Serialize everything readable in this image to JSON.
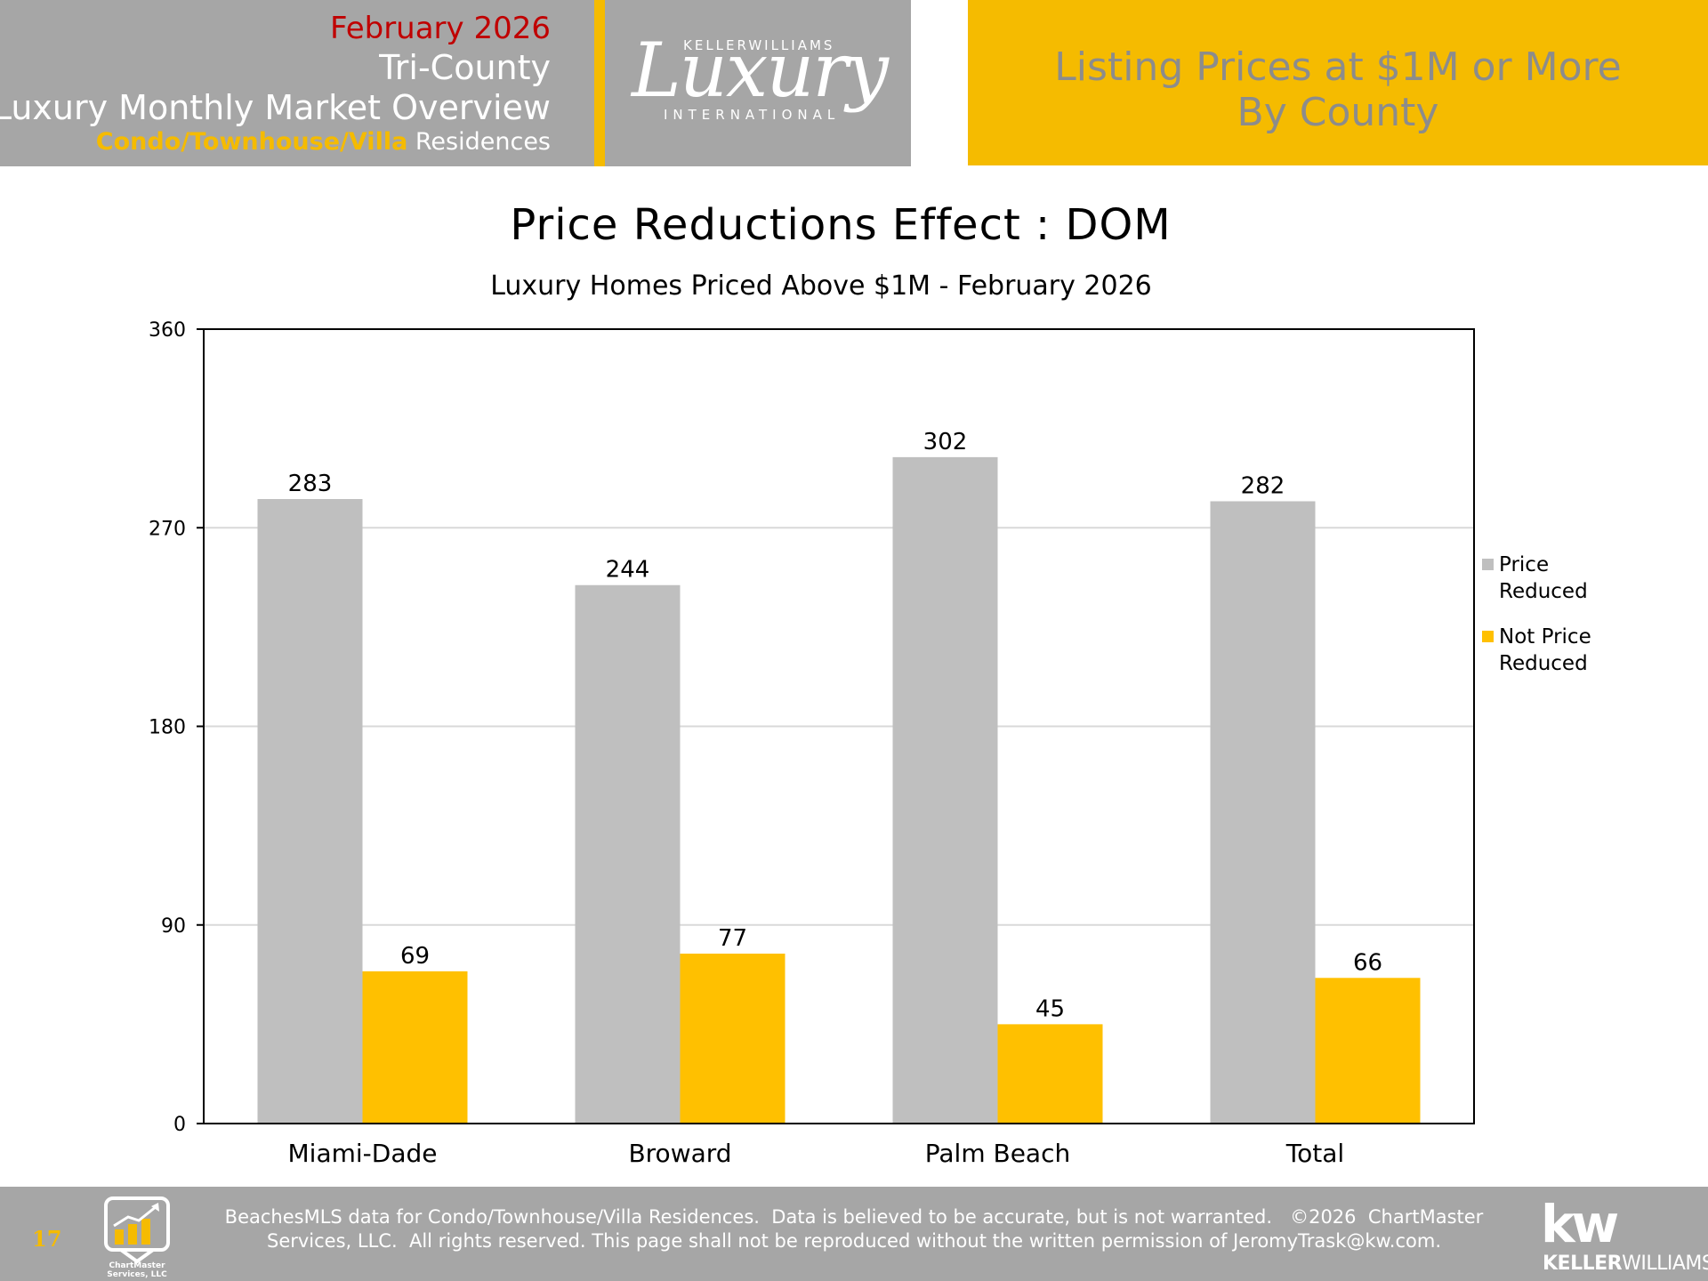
{
  "header": {
    "month": "February 2026",
    "region": "Tri-County",
    "title": "Luxury Monthly Market Overview",
    "property_highlight": "Condo/Townhouse/Villa",
    "property_rest": " Residences",
    "right_line1": "Listing Prices at $1M or More",
    "right_line2": "By County"
  },
  "logo": {
    "top": "KELLERWILLIAMS",
    "script": "Luxury",
    "bottom": "INTERNATIONAL"
  },
  "colors": {
    "accent": "#f5bb00",
    "header_gray": "#a6a6a6",
    "month_red": "#c00000",
    "bar_gray": "#bfbfbf",
    "bar_yellow": "#ffc000"
  },
  "chart_data": {
    "type": "bar",
    "title": "Price Reductions Effect : DOM",
    "subtitle": "Luxury Homes Priced Above $1M - February 2026",
    "categories": [
      "Miami-Dade",
      "Broward",
      "Palm Beach",
      "Total"
    ],
    "series": [
      {
        "name": "Price Reduced",
        "name_lines": [
          "Price",
          "Reduced"
        ],
        "color": "#bfbfbf",
        "values": [
          283,
          244,
          302,
          282
        ]
      },
      {
        "name": "Not Price Reduced",
        "name_lines": [
          "Not Price",
          "Reduced"
        ],
        "color": "#ffc000",
        "values": [
          69,
          77,
          45,
          66
        ]
      }
    ],
    "ylim": [
      0,
      360
    ],
    "yticks": [
      0,
      90,
      180,
      270,
      360
    ],
    "grid": true,
    "legend_position": "right"
  },
  "footer": {
    "page_number": "17",
    "chartmaster_name": "ChartMaster Services, LLC",
    "disclaimer_line1": "BeachesMLS data for Condo/Townhouse/Villa Residences.  Data is believed to be accurate, but is not warranted.   ©2026  ChartMaster",
    "disclaimer_line2": "Services, LLC.  All rights reserved. This page shall not be reproduced without the written permission of JeromyTrask@kw.com.",
    "kw_mark": "kw",
    "kw_name_bold": "KELLER",
    "kw_name_rest": "WILLIAMS."
  }
}
